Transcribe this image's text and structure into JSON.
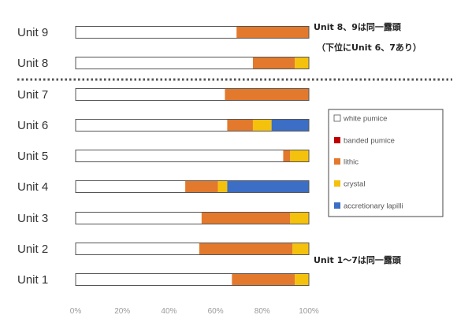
{
  "chart_data": {
    "type": "bar",
    "stacked": true,
    "orientation": "horizontal",
    "categories": [
      "Unit 9",
      "Unit 8",
      "Unit 7",
      "Unit 6",
      "Unit 5",
      "Unit 4",
      "Unit 3",
      "Unit 2",
      "Unit 1"
    ],
    "series": [
      {
        "name": "white pumice",
        "color": "#ffffff",
        "values": [
          69,
          76,
          64,
          65,
          89,
          47,
          54,
          53,
          67
        ]
      },
      {
        "name": "banded pumice",
        "color": "#c00000",
        "values": [
          0,
          0,
          0,
          0,
          0,
          0,
          0,
          0,
          0
        ]
      },
      {
        "name": "lithic",
        "color": "#e2792d",
        "values": [
          31,
          18,
          36,
          11,
          3,
          14,
          38,
          40,
          27
        ]
      },
      {
        "name": "crystal",
        "color": "#f4c20d",
        "values": [
          0,
          6,
          0,
          8,
          8,
          4,
          8,
          7,
          6
        ]
      },
      {
        "name": "accretionary lapilli",
        "color": "#3b6ec4",
        "values": [
          0,
          0,
          0,
          16,
          0,
          35,
          0,
          0,
          0
        ]
      }
    ],
    "xticks": [
      "0%",
      "20%",
      "40%",
      "60%",
      "80%",
      "100%"
    ],
    "xlim": [
      0,
      100
    ],
    "legend_position": "right",
    "grid": false
  },
  "annotations": {
    "top_line1": "Unit 8、9は同一露頭",
    "top_line2": "（下位にUnit 6、7あり）",
    "bottom": "Unit 1～7は同一露頭"
  }
}
